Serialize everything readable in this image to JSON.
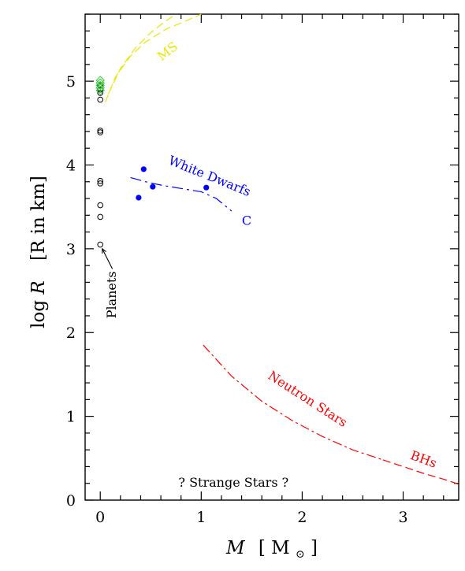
{
  "chart_data": {
    "type": "scatter",
    "title": "",
    "xlabel": {
      "italic": "M",
      "bracket_open": "[",
      "unit": "M",
      "sub": "⊙",
      "bracket_close": "]"
    },
    "ylabel": {
      "prefix": "log ",
      "italic": "R",
      "rest": "[R in km]"
    },
    "xlim": [
      -0.15,
      3.55
    ],
    "ylim": [
      0,
      5.8
    ],
    "x_ticks": [
      {
        "value": 0,
        "label": "0"
      },
      {
        "value": 1,
        "label": "1"
      },
      {
        "value": 2,
        "label": "2"
      },
      {
        "value": 3,
        "label": "3"
      }
    ],
    "y_ticks": [
      {
        "value": 0,
        "label": "0"
      },
      {
        "value": 1,
        "label": "1"
      },
      {
        "value": 2,
        "label": "2"
      },
      {
        "value": 3,
        "label": "3"
      },
      {
        "value": 4,
        "label": "4"
      },
      {
        "value": 5,
        "label": "5"
      }
    ],
    "x_minor_step": 0.2,
    "y_minor_step": 0.2,
    "series": [
      {
        "name": "Planets",
        "kind": "points",
        "marker": "open-circle",
        "color": "#000000",
        "x": [
          0,
          0,
          0,
          0,
          0,
          0,
          0,
          0,
          0,
          0,
          0
        ],
        "y": [
          3.05,
          3.38,
          3.52,
          3.78,
          3.81,
          4.39,
          4.41,
          4.78,
          4.86,
          4.9,
          4.95
        ]
      },
      {
        "name": "",
        "kind": "points",
        "marker": "diamond",
        "color": "#33cc33",
        "x": [
          0,
          0,
          0,
          0,
          0
        ],
        "y": [
          4.89,
          4.92,
          4.95,
          4.98,
          5.01
        ]
      },
      {
        "name": "White Dwarfs",
        "kind": "points",
        "marker": "filled-circle",
        "color": "#0000ff",
        "x": [
          0.38,
          0.43,
          0.52,
          1.05
        ],
        "y": [
          3.61,
          3.95,
          3.74,
          3.73
        ]
      },
      {
        "name": "C",
        "kind": "line",
        "dash": "14 5 3 5",
        "color": "#0000ff",
        "x": [
          0.3,
          0.45,
          0.6,
          0.8,
          1.0,
          1.15,
          1.3
        ],
        "y": [
          3.85,
          3.8,
          3.76,
          3.72,
          3.68,
          3.6,
          3.45
        ]
      },
      {
        "name": "MS",
        "kind": "line",
        "dash": "10 5",
        "color": "#e8e800",
        "x": [
          0.05,
          0.15,
          0.3,
          0.45,
          0.65,
          0.85,
          1.0
        ],
        "y": [
          4.75,
          5.05,
          5.3,
          5.47,
          5.62,
          5.72,
          5.8
        ]
      },
      {
        "name": "",
        "kind": "line",
        "dash": "10 5",
        "color": "#e8e800",
        "x": [
          0.08,
          0.2,
          0.35,
          0.5,
          0.65,
          0.75
        ],
        "y": [
          4.85,
          5.15,
          5.4,
          5.58,
          5.72,
          5.8
        ]
      },
      {
        "name": "Neutron Stars",
        "kind": "line",
        "dash": "12 4 3 4",
        "color": "#ff0000",
        "x": [
          1.02,
          1.3,
          1.6,
          1.9,
          2.2,
          2.5,
          2.8
        ],
        "y": [
          1.85,
          1.48,
          1.18,
          0.95,
          0.76,
          0.6,
          0.48
        ]
      },
      {
        "name": "BHs",
        "kind": "line",
        "dash": "10 5",
        "color": "#ff0000",
        "x": [
          2.8,
          3.0,
          3.2,
          3.4,
          3.55
        ],
        "y": [
          0.48,
          0.4,
          0.32,
          0.25,
          0.19
        ]
      }
    ],
    "annotations": [
      {
        "text": "Planets",
        "color": "#000000",
        "x": 0.12,
        "y": 2.45,
        "rotate": -90,
        "size": 16
      },
      {
        "text": "White Dwarfs",
        "color": "#0000ff",
        "x": 1.08,
        "y": 3.86,
        "rotate": 22,
        "size": 17
      },
      {
        "text": "C",
        "color": "#0000ff",
        "x": 1.45,
        "y": 3.33,
        "rotate": 0,
        "size": 17
      },
      {
        "text": "MS",
        "color": "#e8e800",
        "x": 0.67,
        "y": 5.35,
        "rotate": -38,
        "size": 16
      },
      {
        "text": "Neutron Stars",
        "color": "#ff0000",
        "x": 2.05,
        "y": 1.2,
        "rotate": 33,
        "size": 17
      },
      {
        "text": "BHs",
        "color": "#ff0000",
        "x": 3.2,
        "y": 0.48,
        "rotate": 20,
        "size": 17
      },
      {
        "text": "? Strange Stars ?",
        "color": "#000000",
        "x": 1.32,
        "y": 0.2,
        "rotate": 0,
        "size": 17
      }
    ],
    "arrow": {
      "from": [
        0.12,
        2.76
      ],
      "to": [
        0.02,
        3.0
      ],
      "color": "#000000"
    }
  }
}
